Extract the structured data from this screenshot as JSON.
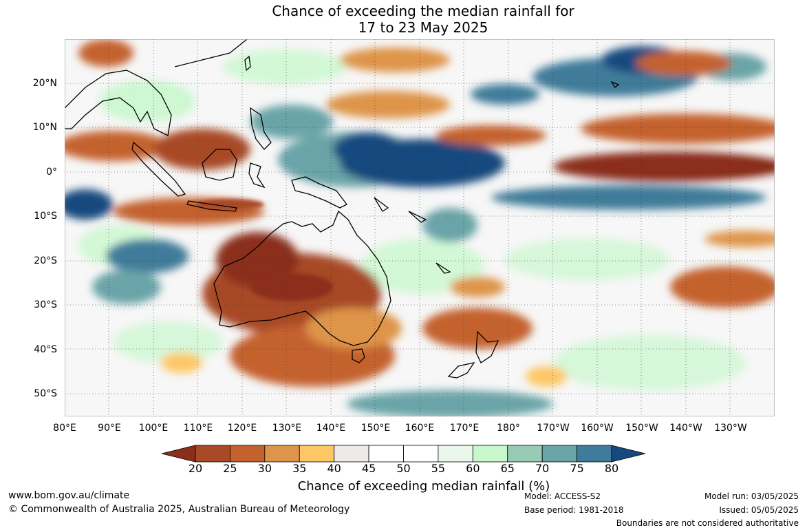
{
  "title": {
    "line1": "Chance of exceeding the median rainfall for",
    "line2": "17 to 23 May 2025"
  },
  "map": {
    "lon_ticks": [
      "80°E",
      "90°E",
      "100°E",
      "110°E",
      "120°E",
      "130°E",
      "140°E",
      "150°E",
      "160°E",
      "170°E",
      "180°",
      "170°W",
      "160°W",
      "150°W",
      "140°W",
      "130°W"
    ],
    "lat_ticks": [
      "20°N",
      "10°N",
      "0°",
      "10°S",
      "20°S",
      "30°S",
      "40°S",
      "50°S"
    ],
    "gridlines": true,
    "extent": {
      "lon_min": 80,
      "lon_max": 240,
      "lat_min": -55,
      "lat_max": 30
    }
  },
  "colorbar": {
    "labels": [
      "20",
      "25",
      "30",
      "35",
      "40",
      "45",
      "50",
      "55",
      "60",
      "65",
      "70",
      "75",
      "80"
    ],
    "colors": [
      "#a84a26",
      "#c4622e",
      "#de944a",
      "#fdc766",
      "#ecebe8",
      "#ffffff",
      "#ffffff",
      "#e9f8ea",
      "#c8f7cc",
      "#98cbb5",
      "#6aa4a8",
      "#3f7b9a"
    ],
    "under_color": "#8b2e1c",
    "over_color": "#164a7e",
    "title": "Chance of exceeding median rainfall (%)"
  },
  "footer": {
    "website": "www.bom.gov.au/climate",
    "copyright": "© Commonwealth of Australia 2025, Australian Bureau of Meteorology",
    "model": "Model: ACCESS-S2",
    "base_period": "Base period: 1981-2018",
    "model_run": "Model run: 03/05/2025",
    "issued": "Issued: 05/05/2025",
    "disclaimer": "Boundaries are not considered authoritative"
  }
}
